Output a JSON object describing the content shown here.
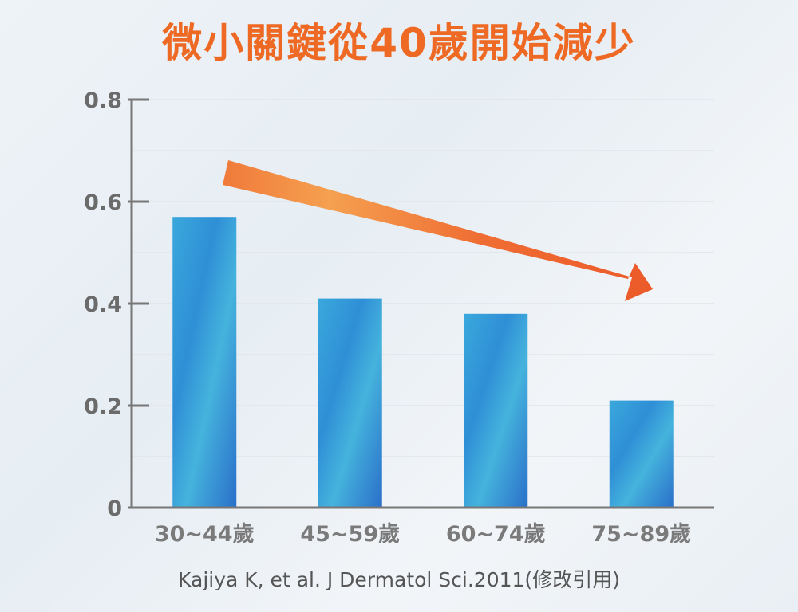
{
  "title": "微小關鍵從40歲開始減少",
  "source": "Kajiya K, et al. J Dermatol Sci.2011(修改引用)",
  "colors": {
    "title": "#ee6a24",
    "bar_light": "#3aa6d8",
    "bar_dark": "#2a6fc9",
    "arrow_start": "#f3a04a",
    "arrow_end": "#ec5a2a",
    "axis": "#777777",
    "grid": "#dfe5ea"
  },
  "chart_data": {
    "type": "bar",
    "categories": [
      "30~44歲",
      "45~59歲",
      "60~74歲",
      "75~89歲"
    ],
    "values": [
      0.57,
      0.41,
      0.38,
      0.21
    ],
    "ylim": [
      0,
      0.8
    ],
    "yticks": [
      0,
      0.2,
      0.4,
      0.6,
      0.8
    ],
    "ytick_labels": [
      "0",
      "0.2",
      "0.4",
      "0.6",
      "0.8"
    ],
    "grid": true,
    "annotation": "decreasing-trend-arrow"
  }
}
